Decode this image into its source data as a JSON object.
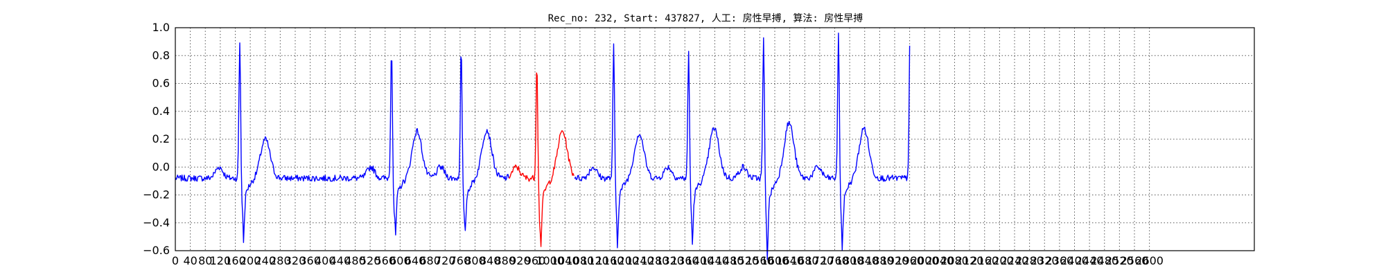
{
  "chart_data": {
    "type": "line",
    "title": "Rec_no: 232, Start: 437827, 人工: 房性早搏, 算法: 房性早搏",
    "xlabel": "",
    "ylabel": "",
    "xlim": [
      0,
      2880
    ],
    "ylim": [
      -0.6,
      1.0
    ],
    "grid": true,
    "yticks": [
      -0.6,
      -0.4,
      -0.2,
      0.0,
      0.2,
      0.4,
      0.6,
      0.8,
      1.0
    ],
    "ytick_labels": [
      "−0.6",
      "−0.4",
      "−0.2",
      "0.0",
      "0.2",
      "0.4",
      "0.6",
      "0.8",
      "1.0"
    ],
    "xticks": [
      0,
      40,
      80,
      120,
      160,
      200,
      240,
      280,
      320,
      360,
      400,
      440,
      480,
      520,
      560,
      600,
      640,
      680,
      720,
      760,
      800,
      840,
      880,
      920,
      960,
      1000,
      1040,
      1080,
      1120,
      1160,
      1200,
      1240,
      1280,
      1320,
      1360,
      1400,
      1440,
      1480,
      1520,
      1560,
      1600,
      1640,
      1680,
      1720,
      1760,
      1800,
      1840,
      1880,
      1920,
      1960,
      2000,
      2040,
      2080,
      2120,
      2160,
      2200,
      2240,
      2280,
      2320,
      2360,
      2400,
      2440,
      2480,
      2520,
      2560,
      2600
    ],
    "xtick_labels": [
      "0",
      "40",
      "80",
      "120",
      "160",
      "200",
      "240",
      "280",
      "320",
      "360",
      "400",
      "440",
      "480",
      "520",
      "560",
      "600",
      "640",
      "680",
      "720",
      "760",
      "800",
      "840",
      "880",
      "920",
      "960",
      "1000",
      "1040",
      "1080",
      "1120",
      "1160",
      "1200",
      "1240",
      "1280",
      "1320",
      "1360",
      "1400",
      "1440",
      "1480",
      "1520",
      "1560",
      "1600",
      "1640",
      "1680",
      "1720",
      "1760",
      "1800",
      "1840",
      "1880",
      "1920",
      "1960",
      "2000",
      "2040",
      "2080",
      "2120",
      "2160",
      "2200",
      "2240",
      "2280",
      "2320",
      "2360",
      "2400",
      "2440",
      "2480",
      "2520",
      "2560",
      "2600"
    ],
    "beats": [
      {
        "r": 172,
        "r_amp": 0.9,
        "q_amp": -0.4,
        "t_amp": 0.2,
        "series": "normal"
      },
      {
        "r": 577,
        "r_amp": 0.88,
        "q_amp": -0.41,
        "t_amp": 0.26,
        "series": "normal"
      },
      {
        "r": 763,
        "r_amp": 0.87,
        "q_amp": -0.4,
        "t_amp": 0.27,
        "series": "normal"
      },
      {
        "r": 965,
        "r_amp": 0.77,
        "q_amp": -0.48,
        "t_amp": 0.26,
        "series": "premature"
      },
      {
        "r": 1170,
        "r_amp": 0.88,
        "q_amp": -0.42,
        "t_amp": 0.24,
        "series": "normal"
      },
      {
        "r": 1370,
        "r_amp": 0.84,
        "q_amp": -0.42,
        "t_amp": 0.28,
        "series": "normal"
      },
      {
        "r": 1570,
        "r_amp": 0.92,
        "q_amp": -0.48,
        "t_amp": 0.32,
        "series": "normal"
      },
      {
        "r": 1770,
        "r_amp": 0.95,
        "q_amp": -0.45,
        "t_amp": 0.28,
        "series": "normal"
      },
      {
        "r": 1960,
        "r_amp": 0.85,
        "q_amp": null,
        "t_amp": null,
        "series": "normal"
      }
    ],
    "baseline": -0.08,
    "highlight_range": [
      890,
      1065
    ],
    "series": [
      {
        "key": "normal",
        "color": "#0000ff"
      },
      {
        "key": "premature",
        "color": "#ff0000"
      }
    ]
  }
}
